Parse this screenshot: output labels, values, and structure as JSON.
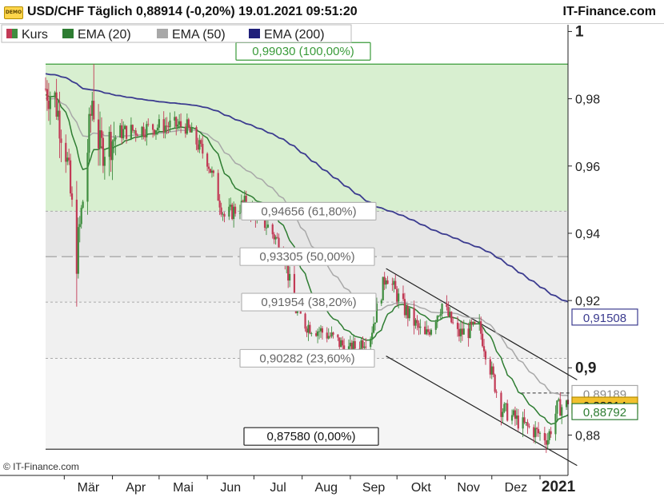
{
  "header": {
    "badge": "DEMO",
    "title": "USD/CHF Täglich 0,88914 (-0,20%) 19.01.2021 09:51:20",
    "brand": "IT-Finance.com"
  },
  "footer": {
    "credit": "© IT-Finance.com"
  },
  "colors": {
    "candle_up": "#3f8d3f",
    "candle_down": "#c23a56",
    "ema20": "#2e7d32",
    "ema50": "#a8a8a8",
    "ema200": "#3b3b8f",
    "fib_zone": "#d8efd0",
    "fib_line": "#3a9b3a",
    "last_price": "#f2c12e"
  },
  "chart_data": {
    "type": "candlestick",
    "legend": [
      {
        "name": "Kurs",
        "color": "#c23a56"
      },
      {
        "name": "EMA (20)",
        "color": "#2e7d32"
      },
      {
        "name": "EMA (50)",
        "color": "#a8a8a8"
      },
      {
        "name": "EMA (200)",
        "color": "#1f1f7a"
      }
    ],
    "legend_position": "top-left",
    "x_ticks": [
      "Mär",
      "Apr",
      "Mai",
      "Jun",
      "Jul",
      "Aug",
      "Sep",
      "Okt",
      "Nov",
      "Dez",
      "2021"
    ],
    "x_tick_dates": [
      "2020-03-01",
      "2020-04-01",
      "2020-05-01",
      "2020-06-01",
      "2020-07-01",
      "2020-08-01",
      "2020-09-01",
      "2020-10-01",
      "2020-11-01",
      "2020-12-01",
      "2021-01-01"
    ],
    "x_range": [
      "2020-02-18",
      "2021-01-19"
    ],
    "y_ticks": [
      "1",
      "0,98",
      "0,96",
      "0,94",
      "0,92",
      "0,9",
      "0,88"
    ],
    "y_tick_values": [
      1.0,
      0.98,
      0.96,
      0.94,
      0.92,
      0.9,
      0.88
    ],
    "y_range": [
      0.868,
      1.002
    ],
    "fibonacci": [
      {
        "label": "0,99030 (100,00%)",
        "value": 0.9903
      },
      {
        "label": "0,94656 (61,80%)",
        "value": 0.94656
      },
      {
        "label": "0,93305 (50,00%)",
        "value": 0.93305
      },
      {
        "label": "0,91954 (38,20%)",
        "value": 0.91954
      },
      {
        "label": "0,90282 (23,60%)",
        "value": 0.90282
      },
      {
        "label": "0,87580 (0,00%)",
        "value": 0.8758
      }
    ],
    "price_tags": [
      {
        "label": "0,91508",
        "value": 0.91508,
        "series": "EMA (200)"
      },
      {
        "label": "0,89189",
        "value": 0.89189,
        "series": "EMA (50)"
      },
      {
        "label": "0,88914",
        "value": 0.88914,
        "series": "Kurs"
      },
      {
        "label": "0,88792",
        "value": 0.88792,
        "series": "EMA (20)"
      }
    ],
    "channel": {
      "upper": [
        [
          "2020-09-24",
          0.9295
        ],
        [
          "2021-01-19",
          0.898
        ]
      ],
      "lower": [
        [
          "2020-09-24",
          0.9035
        ],
        [
          "2021-01-19",
          0.8725
        ]
      ]
    },
    "dashed_resistance": {
      "from": "2020-12-20",
      "to": "2021-01-19",
      "value": 0.8925
    },
    "anchors": [
      [
        "2020-02-18",
        0.983
      ],
      [
        "2020-02-24",
        0.98
      ],
      [
        "2020-03-02",
        0.965
      ],
      [
        "2020-03-09",
        0.933
      ],
      [
        "2020-03-13",
        0.95
      ],
      [
        "2020-03-19",
        0.98
      ],
      [
        "2020-03-24",
        0.965
      ],
      [
        "2020-04-06",
        0.97
      ],
      [
        "2020-04-20",
        0.971
      ],
      [
        "2020-05-04",
        0.972
      ],
      [
        "2020-05-18",
        0.972
      ],
      [
        "2020-06-01",
        0.962
      ],
      [
        "2020-06-12",
        0.945
      ],
      [
        "2020-06-26",
        0.949
      ],
      [
        "2020-07-10",
        0.942
      ],
      [
        "2020-07-20",
        0.935
      ],
      [
        "2020-07-27",
        0.918
      ],
      [
        "2020-08-03",
        0.913
      ],
      [
        "2020-08-17",
        0.91
      ],
      [
        "2020-09-01",
        0.905
      ],
      [
        "2020-09-14",
        0.91
      ],
      [
        "2020-09-24",
        0.928
      ],
      [
        "2020-10-05",
        0.918
      ],
      [
        "2020-10-19",
        0.909
      ],
      [
        "2020-10-30",
        0.919
      ],
      [
        "2020-11-09",
        0.91
      ],
      [
        "2020-11-23",
        0.912
      ],
      [
        "2020-12-07",
        0.888
      ],
      [
        "2020-12-21",
        0.883
      ],
      [
        "2021-01-06",
        0.879
      ],
      [
        "2021-01-12",
        0.888
      ],
      [
        "2021-01-19",
        0.8891
      ]
    ],
    "last": {
      "open": 0.8905,
      "close": 0.88914
    }
  }
}
